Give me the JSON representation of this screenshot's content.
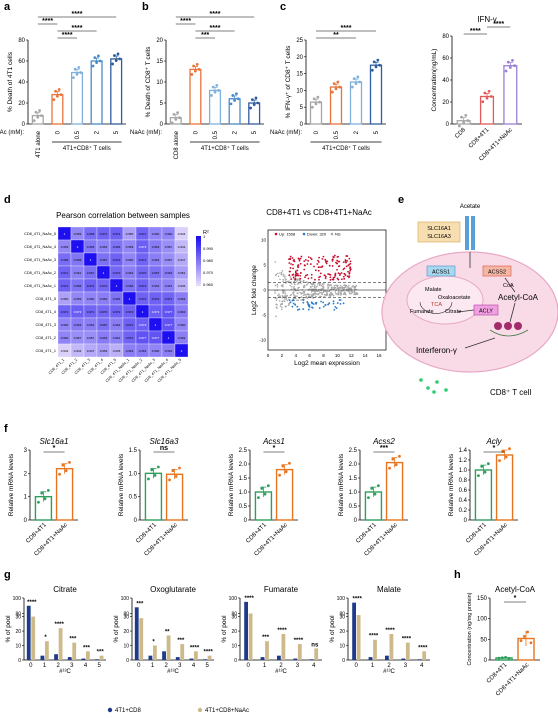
{
  "panels": {
    "a": "a",
    "b": "b",
    "c": "c",
    "d": "d",
    "e": "e",
    "f": "f",
    "g": "g",
    "h": "h"
  },
  "chart_data": [
    {
      "id": "a",
      "type": "bar",
      "ylabel": "% Death of 4T1 cells",
      "ylim": [
        0,
        80
      ],
      "yticks": [
        0,
        20,
        40,
        60,
        80
      ],
      "prefix": "NaAc (mM):",
      "group_label": "4T1+CD8⁺ T cells",
      "categories": [
        "4T1 alone",
        "0",
        "0.5",
        "2",
        "5"
      ],
      "values": [
        8,
        28,
        49,
        60,
        62
      ],
      "colors": [
        "#a6a6a6",
        "#e8743b",
        "#7fb1dc",
        "#4a8cc9",
        "#2f5d9e"
      ],
      "sig": [
        [
          "0",
          "0.5",
          "****"
        ],
        [
          "0",
          "2",
          "****"
        ],
        [
          "4T1 alone",
          "0",
          "****"
        ],
        [
          "4T1 alone",
          "5",
          "****"
        ]
      ]
    },
    {
      "id": "b",
      "type": "bar",
      "ylabel": "% Death of CD8⁺ T cells",
      "ylim": [
        0,
        20
      ],
      "yticks": [
        0,
        5,
        10,
        15,
        20
      ],
      "prefix": "NaAc (mM):",
      "group_label": "4T1+CD8⁺ T cells",
      "categories": [
        "CD8 alone",
        "0",
        "0.5",
        "2",
        "5"
      ],
      "values": [
        1.5,
        13,
        8,
        6,
        5
      ],
      "colors": [
        "#a6a6a6",
        "#e8743b",
        "#7fb1dc",
        "#4a8cc9",
        "#2f5d9e"
      ],
      "sig": [
        [
          "0",
          "0.5",
          "***"
        ],
        [
          "0",
          "2",
          "****"
        ],
        [
          "CD8 alone",
          "0",
          "****"
        ],
        [
          "CD8 alone",
          "5",
          "****"
        ]
      ]
    },
    {
      "id": "c",
      "type": "bar",
      "ylabel": "% IFN-γ⁺ of CD8⁺ T cells",
      "ylim": [
        0,
        25
      ],
      "yticks": [
        0,
        5,
        10,
        15,
        20,
        25
      ],
      "prefix": "NaAc (mM):",
      "group_label": "4T1+CD8⁺ T cells",
      "categories": [
        "0",
        "0.5",
        "2",
        "5"
      ],
      "values": [
        6.5,
        11,
        12.5,
        17.5
      ],
      "colors": [
        "#a6a6a6",
        "#e8743b",
        "#7fb1dc",
        "#2f5d9e"
      ],
      "sig": [
        [
          "0",
          "2",
          "**"
        ],
        [
          "0",
          "5",
          "****"
        ]
      ]
    },
    {
      "id": "c2",
      "type": "bar",
      "title": "IFN-γ",
      "ylabel": "Concentration(ng/mL)",
      "ylim": [
        0,
        80
      ],
      "yticks": [
        0,
        20,
        40,
        60,
        80
      ],
      "categories": [
        "CD8",
        "CD8+4T1",
        "CD8+4T1+NaAc"
      ],
      "values": [
        3,
        25,
        53
      ],
      "colors": [
        "#a6a6a6",
        "#e25b5b",
        "#9b7fd6"
      ],
      "sig": [
        [
          "CD8",
          "CD8+4T1",
          "****"
        ],
        [
          "CD8+4T1",
          "CD8+4T1+NaAc",
          "****"
        ]
      ]
    },
    {
      "id": "d1",
      "type": "heatmap",
      "title": "Pearson correlation between samples",
      "labels": [
        "CD8_4T1_NaAc_5",
        "CD8_4T1_NaAc_4",
        "CD8_4T1_NaAc_3",
        "CD8_4T1_NaAc_2",
        "CD8_4T1_NaAc_1",
        "CD8_4T1_5",
        "CD8_4T1_4",
        "CD8_4T1_3",
        "CD8_4T1_2",
        "CD8_4T1_1"
      ],
      "legend_title": "R²",
      "legend_ticks": [
        "1",
        "0.990",
        "0.980",
        "0.970",
        "0.960"
      ],
      "values": [
        [
          "1",
          "0.959",
          "0.968",
          "0.971",
          "0.972",
          "0.950",
          "0.971",
          "0.960",
          "0.960",
          "0.934"
        ],
        [
          "0.959",
          "1",
          "0.965",
          "0.961",
          "0.966",
          "0.959",
          "0.973",
          "0.963",
          "0.957",
          "0.942"
        ],
        [
          "0.968",
          "0.965",
          "1",
          "0.967",
          "0.972",
          "0.960",
          "0.971",
          "0.962",
          "0.957",
          "0.947"
        ],
        [
          "0.971",
          "0.961",
          "0.967",
          "1",
          "0.970",
          "0.962",
          "0.970",
          "0.967",
          "0.963",
          "0.952"
        ],
        [
          "0.972",
          "0.966",
          "0.972",
          "0.970",
          "1",
          "0.966",
          "0.972",
          "0.962",
          "0.961",
          "0.945"
        ],
        [
          "0.950",
          "0.959",
          "0.960",
          "0.962",
          "0.966",
          "1",
          "0.972",
          "0.972",
          "0.971",
          "0.962"
        ],
        [
          "0.971",
          "0.973",
          "0.971",
          "0.970",
          "0.972",
          "0.972",
          "1",
          "0.973",
          "0.977",
          "0.963"
        ],
        [
          "0.960",
          "0.963",
          "0.962",
          "0.967",
          "0.962",
          "0.972",
          "0.973",
          "1",
          "0.977",
          "0.960"
        ],
        [
          "0.960",
          "0.957",
          "0.957",
          "0.963",
          "0.961",
          "0.971",
          "0.977",
          "0.977",
          "1",
          "0.962"
        ],
        [
          "0.934",
          "0.942",
          "0.947",
          "0.952",
          "0.945",
          "0.962",
          "0.963",
          "0.960",
          "0.962",
          "1"
        ]
      ]
    },
    {
      "id": "d2",
      "type": "scatter",
      "title": "CD8+4T1 vs CD8+4T1+NaAc",
      "legend": [
        "Up: 1508",
        "Down: 320",
        "NS"
      ],
      "xlabel": "Log2 mean expression",
      "ylabel": "Log2 fold change",
      "xticks": [
        "0",
        "2",
        "4",
        "6",
        "8",
        "10",
        "12",
        "14",
        "16"
      ],
      "yticks": [
        "-10",
        "-5",
        "0",
        "5",
        "10"
      ],
      "xlim": [
        0,
        17
      ],
      "ylim": [
        -12,
        12
      ],
      "colors": {
        "up": "#c8102e",
        "down": "#2b7bcc",
        "ns": "#a8a8a8"
      }
    },
    {
      "id": "f",
      "type": "bar",
      "ylabel": "Relative mRNA levels",
      "categories": [
        "CD8+4T1",
        "CD8+4T1+NaAc"
      ],
      "colors": [
        "#2e9e5b",
        "#e8741f"
      ],
      "genes": [
        {
          "name": "Slc16a1",
          "values": [
            1.0,
            2.2
          ],
          "ylim": [
            0,
            3
          ],
          "yticks": [
            "0",
            "1",
            "2",
            "3"
          ],
          "sig": "*"
        },
        {
          "name": "Slc16a3",
          "values": [
            1.0,
            0.98
          ],
          "ylim": [
            0,
            1.5
          ],
          "yticks": [
            "0",
            "0.5",
            "1.0",
            "1.5"
          ],
          "sig": "ns"
        },
        {
          "name": "Acss1",
          "values": [
            1.0,
            1.8
          ],
          "ylim": [
            0,
            2.5
          ],
          "yticks": [
            "0",
            "0.5",
            "1.0",
            "1.5",
            "2.0",
            "2.5"
          ],
          "sig": "*"
        },
        {
          "name": "Acss2",
          "values": [
            1.0,
            2.05
          ],
          "ylim": [
            0,
            2.5
          ],
          "yticks": [
            "0",
            "0.5",
            "1.0",
            "1.5",
            "2.0",
            "2.5"
          ],
          "sig": "***"
        },
        {
          "name": "Acly",
          "values": [
            1.0,
            1.3
          ],
          "ylim": [
            0,
            1.4
          ],
          "yticks": [
            "0",
            "0.2",
            "0.4",
            "0.6",
            "0.8",
            "1.0",
            "1.2",
            "1.4"
          ],
          "sig": "*"
        }
      ]
    },
    {
      "id": "g",
      "type": "bar",
      "ylabel": "% of pool",
      "xlabel": "#¹³C",
      "legend": [
        "4T1+CD8",
        "4T1+CD8+NaAc"
      ],
      "colors": [
        "#1f3a8a",
        "#cdb98a"
      ],
      "metabolites": [
        {
          "name": "Citrate",
          "isotopes": [
            "0",
            "1",
            "2",
            "3",
            "4",
            "5"
          ],
          "a": [
            90,
            3,
            4,
            2,
            1,
            0.5
          ],
          "b": [
            76,
            13,
            22,
            12,
            6,
            3
          ],
          "sig": [
            "****",
            "*",
            "****",
            "***",
            "***",
            "***"
          ]
        },
        {
          "name": "Oxoglutarate",
          "isotopes": [
            "0",
            "1",
            "2",
            "3",
            "4",
            "5"
          ],
          "a": [
            88,
            3,
            6,
            2,
            1,
            0.5
          ],
          "b": [
            74,
            10,
            17,
            11,
            6,
            3
          ],
          "sig": [
            "***",
            "*",
            "**",
            "***",
            "****",
            "****"
          ]
        },
        {
          "name": "Fumarate",
          "isotopes": [
            "0",
            "1",
            "2",
            "3",
            "4"
          ],
          "a": [
            95,
            2,
            3,
            1,
            0.5
          ],
          "b": [
            80,
            13,
            18,
            11,
            8
          ],
          "sig": [
            "****",
            "***",
            "****",
            "****",
            "ns"
          ]
        },
        {
          "name": "Malate",
          "isotopes": [
            "0",
            "1",
            "2",
            "3",
            "4"
          ],
          "a": [
            94,
            2,
            3,
            1,
            0.5
          ],
          "b": [
            78,
            14,
            18,
            12,
            6
          ],
          "sig": [
            "****",
            "****",
            "****",
            "****",
            "****"
          ]
        }
      ],
      "ylim": [
        0,
        100
      ],
      "yticks": [
        "0",
        "10",
        "20",
        "30",
        "80",
        "100"
      ]
    },
    {
      "id": "h",
      "type": "bar",
      "title": "Acetyl-CoA",
      "ylabel": "Concentration (ng/mg protein)",
      "ylim": [
        0,
        150
      ],
      "yticks": [
        "0",
        "50",
        "100",
        "150"
      ],
      "categories": [
        "CD8+4T1",
        "CD8+4T1+NaAc"
      ],
      "values": [
        5,
        52
      ],
      "colors": [
        "#2e9e5b",
        "#e8741f"
      ],
      "sig": "*"
    }
  ],
  "diagram_e": {
    "acetate": "Acetate",
    "transporter": [
      "SLC16A1",
      "SLC16A3"
    ],
    "acss1": "ACSS1",
    "acss2": "ACSS2",
    "acly": "ACLY",
    "malate": "Malate",
    "oxaloacetate": "Oxaloacetate",
    "fumarate": "Fumarate",
    "citrate": "Citrate",
    "tca": "TCA",
    "acetylcoa": "Acetyl-CoA",
    "ifn": "Interferon-γ",
    "cell": "CD8⁺ T cell",
    "coa": "CoA"
  }
}
